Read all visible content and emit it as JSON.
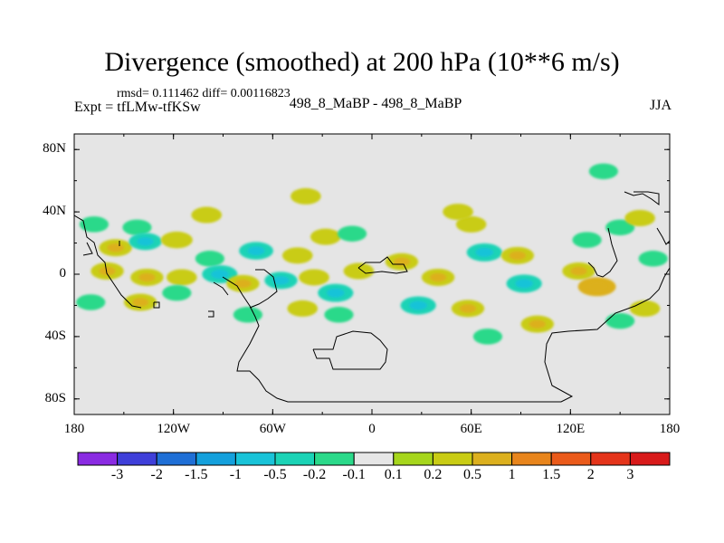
{
  "header": {
    "title": "Divergence (smoothed) at 200 hPa (10**6 m/s)",
    "stats": "rmsd= 0.111462 diff= 0.00116823",
    "experiment": "Expt = tfLMw-tfKSw",
    "case": "498_8_MaBP - 498_8_MaBP",
    "season": "JJA"
  },
  "chart_data": {
    "type": "heatmap",
    "title": "Divergence (smoothed) at 200 hPa (10**6 m/s)",
    "xlabel": "",
    "ylabel": "",
    "xlim": [
      -180,
      180
    ],
    "ylim": [
      -90,
      90
    ],
    "x_ticks": [
      {
        "value": -180,
        "label": "180"
      },
      {
        "value": -120,
        "label": "120W"
      },
      {
        "value": -60,
        "label": "60W"
      },
      {
        "value": 0,
        "label": "0"
      },
      {
        "value": 60,
        "label": "60E"
      },
      {
        "value": 120,
        "label": "120E"
      },
      {
        "value": 180,
        "label": "180"
      }
    ],
    "y_ticks": [
      {
        "value": 80,
        "label": "80N"
      },
      {
        "value": 40,
        "label": "40N"
      },
      {
        "value": 0,
        "label": "0"
      },
      {
        "value": -40,
        "label": "40S"
      },
      {
        "value": -80,
        "label": "80S"
      }
    ],
    "background_color": "#e5e5e5",
    "colorbar": {
      "levels": [
        "-3",
        "-2",
        "-1.5",
        "-1",
        "-0.5",
        "-0.2",
        "-0.1",
        "0.1",
        "0.2",
        "0.5",
        "1",
        "1.5",
        "2",
        "3"
      ],
      "colors": [
        "#8a2be2",
        "#3f3fd9",
        "#1f6fd6",
        "#14a0dc",
        "#19c3d8",
        "#1bd3b6",
        "#2bd98a",
        "#e6e6e6",
        "#a6d61c",
        "#c9cc14",
        "#dcb01e",
        "#e8851c",
        "#ea5a1a",
        "#e4341a",
        "#d81a1a"
      ]
    },
    "blobs": [
      {
        "lon": -168,
        "lat": 32,
        "value": -0.15
      },
      {
        "lon": -142,
        "lat": 30,
        "value": -0.15
      },
      {
        "lon": -155,
        "lat": 17,
        "value": 0.3
      },
      {
        "lon": -137,
        "lat": 21,
        "value": -0.3
      },
      {
        "lon": -118,
        "lat": 22,
        "value": 0.25
      },
      {
        "lon": -98,
        "lat": 10,
        "value": -0.15
      },
      {
        "lon": -70,
        "lat": 15,
        "value": -0.35
      },
      {
        "lon": -45,
        "lat": 12,
        "value": 0.2
      },
      {
        "lon": -28,
        "lat": 24,
        "value": 0.2
      },
      {
        "lon": -12,
        "lat": 26,
        "value": -0.15
      },
      {
        "lon": -160,
        "lat": 2,
        "value": 0.3
      },
      {
        "lon": -136,
        "lat": -2,
        "value": 0.3
      },
      {
        "lon": -115,
        "lat": -2,
        "value": 0.2
      },
      {
        "lon": -92,
        "lat": 0,
        "value": -0.4
      },
      {
        "lon": -78,
        "lat": -6,
        "value": 0.3
      },
      {
        "lon": -55,
        "lat": -4,
        "value": -0.3
      },
      {
        "lon": -35,
        "lat": -2,
        "value": 0.2
      },
      {
        "lon": -22,
        "lat": -12,
        "value": -0.4
      },
      {
        "lon": -8,
        "lat": 2,
        "value": 0.2
      },
      {
        "lon": -170,
        "lat": -18,
        "value": -0.15
      },
      {
        "lon": -140,
        "lat": -18,
        "value": 0.3
      },
      {
        "lon": -118,
        "lat": -12,
        "value": -0.15
      },
      {
        "lon": -75,
        "lat": -26,
        "value": -0.15
      },
      {
        "lon": -42,
        "lat": -22,
        "value": 0.2
      },
      {
        "lon": -20,
        "lat": -26,
        "value": -0.15
      },
      {
        "lon": 18,
        "lat": 8,
        "value": 0.3
      },
      {
        "lon": 40,
        "lat": -2,
        "value": 0.3
      },
      {
        "lon": 28,
        "lat": -20,
        "value": -0.4
      },
      {
        "lon": 58,
        "lat": -22,
        "value": 0.3
      },
      {
        "lon": 68,
        "lat": 14,
        "value": -0.4
      },
      {
        "lon": 60,
        "lat": 32,
        "value": 0.2
      },
      {
        "lon": 52,
        "lat": 40,
        "value": 0.2
      },
      {
        "lon": 88,
        "lat": 12,
        "value": 0.3
      },
      {
        "lon": 92,
        "lat": -6,
        "value": -0.4
      },
      {
        "lon": 100,
        "lat": -32,
        "value": 0.3
      },
      {
        "lon": 125,
        "lat": 2,
        "value": 0.3
      },
      {
        "lon": 136,
        "lat": -8,
        "value": 0.5
      },
      {
        "lon": 130,
        "lat": 22,
        "value": -0.15
      },
      {
        "lon": 150,
        "lat": 30,
        "value": -0.15
      },
      {
        "lon": 162,
        "lat": 36,
        "value": 0.2
      },
      {
        "lon": 170,
        "lat": 10,
        "value": -0.15
      },
      {
        "lon": 165,
        "lat": -22,
        "value": 0.2
      },
      {
        "lon": 70,
        "lat": -40,
        "value": -0.15
      },
      {
        "lon": 150,
        "lat": -30,
        "value": -0.15
      },
      {
        "lon": -100,
        "lat": 38,
        "value": 0.2
      },
      {
        "lon": -40,
        "lat": 50,
        "value": 0.2
      },
      {
        "lon": 140,
        "lat": 66,
        "value": -0.15
      }
    ]
  }
}
